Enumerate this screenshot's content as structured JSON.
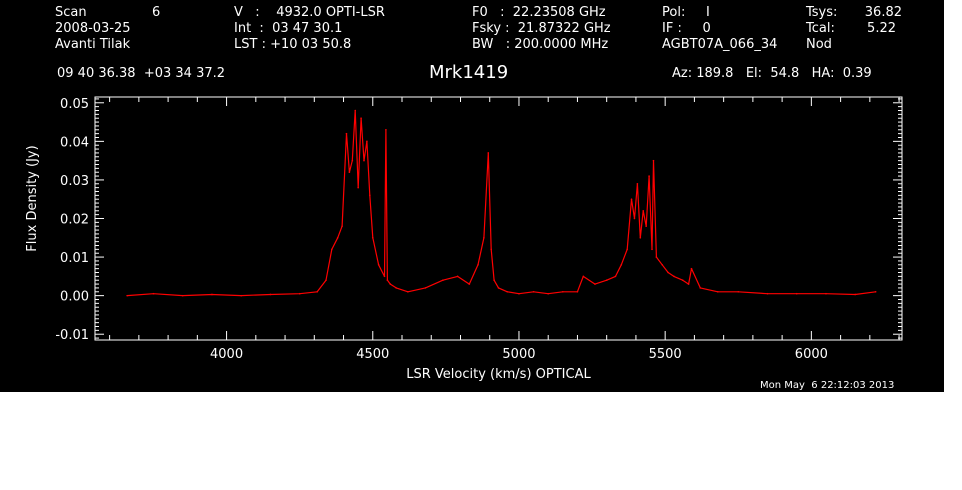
{
  "header": {
    "col1": {
      "line1_label": "Scan",
      "line1_value": "6",
      "line2": "2008-03-25",
      "line3": "Avanti Tilak"
    },
    "col2": {
      "line1": "V   :    4932.0 OPTI-LSR",
      "line2": "Int  :  03 47 30.1",
      "line3": "LST : +10 03 50.8"
    },
    "col3": {
      "line1": "F0   :  22.23508 GHz",
      "line2": "Fsky :  21.87322 GHz",
      "line3": "BW   : 200.0000 MHz"
    },
    "col4": {
      "line1": "Pol:     I",
      "line2": "IF :     0",
      "line3": "AGBT07A_066_34"
    },
    "col5": {
      "line1_label": "Tsys:",
      "line1_value": "36.82",
      "line2_label": "Tcal:",
      "line2_value": "5.22",
      "line3": "Nod"
    },
    "coords": "09 40 36.38  +03 34 37.2",
    "source": "Mrk1419",
    "pointing": "Az: 189.8   El:  54.8   HA:  0.39",
    "timestamp": "Mon May  6 22:12:03 2013"
  },
  "colors": {
    "background": "#000000",
    "axes": "#ffffff",
    "series": "#ff0000"
  },
  "chart_data": {
    "type": "line",
    "title": "Mrk1419",
    "xlabel": "LSR Velocity (km/s) OPTICAL",
    "ylabel": "Flux Density (Jy)",
    "xlim": [
      3550,
      6310
    ],
    "ylim": [
      -0.0115,
      0.0515
    ],
    "xticks": [
      4000,
      4500,
      5000,
      5500,
      6000
    ],
    "xtick_labels": [
      "4000",
      "4500",
      "5000",
      "5500",
      "6000"
    ],
    "yticks": [
      -0.01,
      0.0,
      0.01,
      0.02,
      0.03,
      0.04,
      0.05
    ],
    "ytick_labels": [
      "-0.01",
      "0.00",
      "0.01",
      "0.02",
      "0.03",
      "0.04",
      "0.05"
    ],
    "grid": false,
    "legend": "none",
    "series": [
      {
        "x": [
          3660,
          3750,
          3850,
          3950,
          4050,
          4150,
          4250,
          4310,
          4340,
          4360,
          4380,
          4395,
          4410,
          4420,
          4430,
          4440,
          4450,
          4460,
          4470,
          4480,
          4490,
          4500,
          4520,
          4540,
          4545,
          4550,
          4560,
          4580,
          4620,
          4680,
          4740,
          4790,
          4830,
          4860,
          4880,
          4895,
          4905,
          4915,
          4930,
          4960,
          5000,
          5050,
          5100,
          5150,
          5200,
          5220,
          5260,
          5300,
          5330,
          5350,
          5370,
          5385,
          5395,
          5405,
          5415,
          5425,
          5435,
          5445,
          5455,
          5460,
          5470,
          5490,
          5510,
          5530,
          5560,
          5580,
          5590,
          5620,
          5680,
          5750,
          5850,
          5950,
          6050,
          6150,
          6220
        ],
        "y": [
          0.0,
          0.0005,
          0.0,
          0.0003,
          0.0,
          0.0003,
          0.0005,
          0.001,
          0.004,
          0.012,
          0.015,
          0.018,
          0.042,
          0.032,
          0.035,
          0.048,
          0.028,
          0.046,
          0.035,
          0.04,
          0.026,
          0.015,
          0.008,
          0.005,
          0.043,
          0.004,
          0.003,
          0.002,
          0.001,
          0.002,
          0.004,
          0.005,
          0.003,
          0.008,
          0.015,
          0.037,
          0.012,
          0.004,
          0.002,
          0.001,
          0.0005,
          0.001,
          0.0005,
          0.001,
          0.001,
          0.005,
          0.003,
          0.004,
          0.005,
          0.008,
          0.012,
          0.025,
          0.02,
          0.029,
          0.015,
          0.022,
          0.018,
          0.031,
          0.012,
          0.035,
          0.01,
          0.008,
          0.006,
          0.005,
          0.004,
          0.003,
          0.007,
          0.002,
          0.001,
          0.001,
          0.0005,
          0.0005,
          0.0005,
          0.0003,
          0.001
        ]
      }
    ]
  }
}
